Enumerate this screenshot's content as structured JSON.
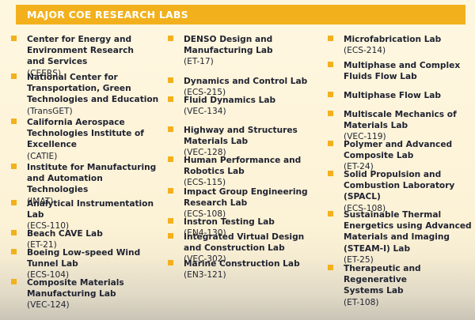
{
  "header": {
    "title": "MAJOR COE RESEARCH LABS"
  },
  "colors": {
    "accent": "#f2b11c",
    "background": "#fef7e0",
    "text": "#1f2230"
  },
  "columns": [
    {
      "items": [
        {
          "name": "Center for Energy and\nEnvironment Research\nand Services",
          "room": "(CEERS)"
        },
        {
          "name": "National Center for\nTransportation, Green\nTechnologies and Education",
          "room": "(TransGET)"
        },
        {
          "name": "California Aerospace\nTechnologies Institute of\nExcellence",
          "room": "(CATIE)"
        },
        {
          "name": "Institute for Manufacturing\nand Automation Technologies",
          "room": "(IMAT)"
        },
        {
          "name": "Analytical Instrumentation Lab",
          "room": "(ECS-110)"
        },
        {
          "name": "Beach CAVE Lab",
          "room": "(ET-21)"
        },
        {
          "name": "Boeing Low-speed Wind\nTunnel Lab",
          "room": "(ECS-104)"
        },
        {
          "name": "Composite Materials\nManufacturing Lab",
          "room": "(VEC-124)"
        }
      ]
    },
    {
      "items": [
        {
          "name": "DENSO Design and\nManufacturing Lab",
          "room": "(ET-17)"
        },
        {
          "name": "Dynamics and Control Lab",
          "room": "(ECS-215)"
        },
        {
          "name": "Fluid Dynamics Lab",
          "room": "(VEC-134)"
        },
        {
          "name": "Highway and Structures\nMaterials Lab",
          "room": "(VEC-128)"
        },
        {
          "name": "Human Performance and\nRobotics Lab",
          "room": "(ECS-115)"
        },
        {
          "name": "Impact Group Engineering\nResearch Lab",
          "room": "(ECS-108)"
        },
        {
          "name": "Instron Testing Lab",
          "room": "(EN4-130)"
        },
        {
          "name": "Integrated Virtual Design\nand Construction Lab",
          "room": "(VEC-302)"
        },
        {
          "name": "Marine Construction Lab",
          "room": "(EN3-121)"
        }
      ]
    },
    {
      "items": [
        {
          "name": "Microfabrication Lab",
          "room": "(ECS-214)"
        },
        {
          "name": "Multiphase and Complex\nFluids Flow Lab",
          "room": ""
        },
        {
          "name": "Multiphase Flow Lab",
          "room": ""
        },
        {
          "name": "Multiscale Mechanics of\nMaterials Lab",
          "room": "(VEC-119)"
        },
        {
          "name": "Polymer and Advanced\nComposite Lab",
          "room": "(ET-24)"
        },
        {
          "name": "Solid Propulsion and\nCombustion Laboratory\n(SPACL)",
          "room": "(ECS-108)"
        },
        {
          "name": "Sustainable Thermal\nEnergetics using Advanced\nMaterials and Imaging\n(STEAM-I) Lab",
          "room": "(ET-25)"
        },
        {
          "name": "Therapeutic and Regenerative\nSystems Lab",
          "room": "(ET-108)"
        }
      ]
    }
  ]
}
